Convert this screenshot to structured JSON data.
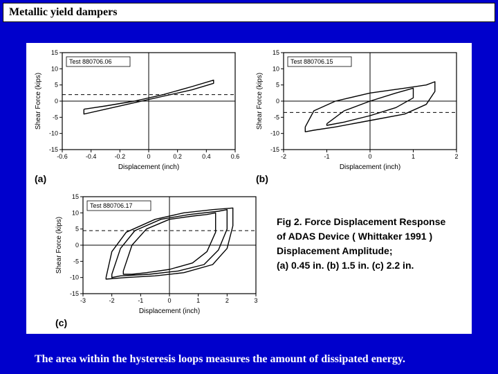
{
  "title": "Metallic yield dampers",
  "footer": "The area within the hysteresis loops measures the amount of dissipated energy.",
  "caption": {
    "line1": "Fig 2. Force Displacement Response",
    "line2": "of ADAS Device ( Whittaker 1991 )",
    "line3": "Displacement Amplitude;",
    "line4": "(a) 0.45 in. (b) 1.5 in. (c) 2.2 in.",
    "fontsize": 14
  },
  "colors": {
    "page_bg": "#0000cc",
    "panel_bg": "#ffffff",
    "stroke": "#000000",
    "text": "#000000",
    "footer_text": "#ffffff"
  },
  "chart_a": {
    "type": "line",
    "panel_label": "(a)",
    "inset": "Test 880706.06",
    "xlabel": "Displacement (inch)",
    "ylabel": "Shear Force (kips)",
    "xlim": [
      -0.6,
      0.6
    ],
    "ylim": [
      -15,
      15
    ],
    "xticks": [
      -0.6,
      -0.4,
      -0.2,
      0.0,
      0.2,
      0.4,
      0.6
    ],
    "yticks": [
      -15,
      -10,
      -5,
      0,
      5,
      10,
      15
    ],
    "dash_y": 2,
    "loop": [
      [
        -0.45,
        -2.5
      ],
      [
        -0.3,
        -1.5
      ],
      [
        -0.1,
        0
      ],
      [
        0.1,
        2
      ],
      [
        0.3,
        4.5
      ],
      [
        0.45,
        6.5
      ],
      [
        0.45,
        5.5
      ],
      [
        0.3,
        3.5
      ],
      [
        0.1,
        1.5
      ],
      [
        -0.1,
        -0.5
      ],
      [
        -0.3,
        -2.5
      ],
      [
        -0.45,
        -4
      ],
      [
        -0.45,
        -2.5
      ]
    ],
    "line_width": 1.4
  },
  "chart_b": {
    "type": "line",
    "panel_label": "(b)",
    "inset": "Test 880706.15",
    "xlabel": "Displacement (inch)",
    "ylabel": "Shear Force (kips)",
    "xlim": [
      -2,
      2
    ],
    "ylim": [
      -15,
      15
    ],
    "xticks": [
      -2,
      -1,
      0,
      1,
      2
    ],
    "yticks": [
      -15,
      -10,
      -5,
      0,
      5,
      10,
      15
    ],
    "dash_y": -3.5,
    "loop": [
      [
        -1.5,
        -8
      ],
      [
        -1.3,
        -3
      ],
      [
        -0.8,
        0
      ],
      [
        0,
        2.5
      ],
      [
        0.8,
        4
      ],
      [
        1.3,
        5
      ],
      [
        1.5,
        6
      ],
      [
        1.5,
        3
      ],
      [
        1.3,
        -1
      ],
      [
        0.8,
        -4
      ],
      [
        0,
        -6
      ],
      [
        -0.8,
        -8
      ],
      [
        -1.3,
        -9
      ],
      [
        -1.5,
        -9.5
      ],
      [
        -1.5,
        -8
      ]
    ],
    "loop2": [
      [
        -1.0,
        -7
      ],
      [
        -0.6,
        -3
      ],
      [
        0,
        0
      ],
      [
        0.6,
        2.5
      ],
      [
        1.0,
        4
      ],
      [
        1.0,
        1
      ],
      [
        0.6,
        -2
      ],
      [
        0,
        -4.5
      ],
      [
        -0.6,
        -6.5
      ],
      [
        -1.0,
        -7.5
      ],
      [
        -1.0,
        -7
      ]
    ],
    "line_width": 1.4
  },
  "chart_c": {
    "type": "line",
    "panel_label": "(c)",
    "inset": "Test 880706.17",
    "xlabel": "Displacement (inch)",
    "ylabel": "Shear Force (kips)",
    "xlim": [
      -3,
      3
    ],
    "ylim": [
      -15,
      15
    ],
    "xticks": [
      -3,
      -2,
      -1,
      0,
      1,
      2,
      3
    ],
    "yticks": [
      -15,
      -10,
      -5,
      0,
      5,
      10,
      15
    ],
    "dash_y": 4.5,
    "loops": [
      [
        [
          -2.2,
          -10
        ],
        [
          -2.0,
          -2
        ],
        [
          -1.5,
          4
        ],
        [
          -0.5,
          8
        ],
        [
          0.5,
          10
        ],
        [
          1.5,
          11
        ],
        [
          2.2,
          11.5
        ],
        [
          2.2,
          6
        ],
        [
          2.0,
          -1
        ],
        [
          1.5,
          -6
        ],
        [
          0.5,
          -8.5
        ],
        [
          -0.5,
          -9.5
        ],
        [
          -1.5,
          -10
        ],
        [
          -2.2,
          -10.5
        ],
        [
          -2.2,
          -10
        ]
      ],
      [
        [
          -2.0,
          -9
        ],
        [
          -1.7,
          -1
        ],
        [
          -1.2,
          4.5
        ],
        [
          -0.3,
          8
        ],
        [
          0.7,
          9.5
        ],
        [
          1.7,
          10.5
        ],
        [
          2.0,
          11
        ],
        [
          2.0,
          5
        ],
        [
          1.7,
          -1.5
        ],
        [
          1.2,
          -6
        ],
        [
          0.3,
          -8
        ],
        [
          -0.7,
          -9
        ],
        [
          -1.7,
          -9.5
        ],
        [
          -2.0,
          -10
        ],
        [
          -2.0,
          -9
        ]
      ],
      [
        [
          -1.6,
          -8
        ],
        [
          -1.3,
          0
        ],
        [
          -0.8,
          5
        ],
        [
          0,
          8
        ],
        [
          0.8,
          9
        ],
        [
          1.3,
          9.5
        ],
        [
          1.6,
          10
        ],
        [
          1.6,
          4
        ],
        [
          1.3,
          -2
        ],
        [
          0.8,
          -5.5
        ],
        [
          0,
          -7.5
        ],
        [
          -0.8,
          -8.5
        ],
        [
          -1.3,
          -9
        ],
        [
          -1.6,
          -9
        ],
        [
          -1.6,
          -8
        ]
      ]
    ],
    "line_width": 1.4
  }
}
